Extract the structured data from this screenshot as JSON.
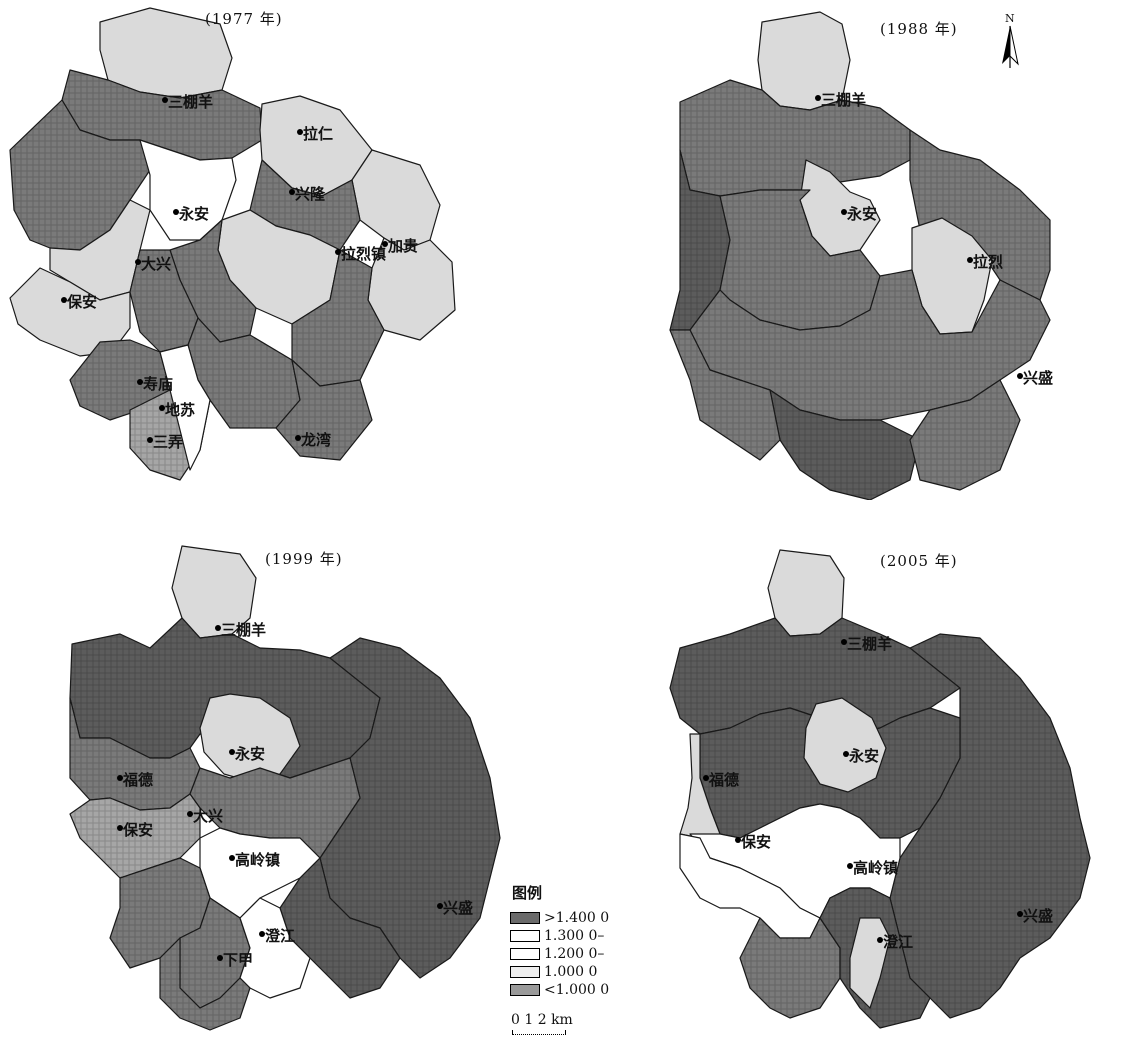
{
  "colors": {
    "very_dark": "#5c5c5c",
    "dark": "#7a7a7a",
    "mid": "#a6a6a6",
    "light": "#dadada",
    "white": "#ffffff",
    "border": "#1a1a1a"
  },
  "maps": [
    {
      "year_label": "(1977 年)",
      "places": [
        "三棚羊",
        "拉仁",
        "永安",
        "大兴",
        "拉烈镇",
        "加贵",
        "保安",
        "寿庙",
        "地苏",
        "三弄",
        "龙湾",
        "兴隆"
      ],
      "region_classes": [
        "light",
        "dark",
        "dark",
        "light",
        "white",
        "light",
        "dark",
        "light",
        "light",
        "dark",
        "light",
        "light",
        "dark",
        "dark",
        "dark",
        "dark",
        "mid",
        "white",
        "dark"
      ]
    },
    {
      "year_label": "(1988 年)",
      "places": [
        "三棚羊",
        "永安",
        "拉烈",
        "兴盛"
      ],
      "region_classes": [
        "light",
        "dark",
        "very_dark",
        "dark",
        "light",
        "dark",
        "light",
        "dark",
        "very_dark",
        "dark",
        "dark"
      ]
    },
    {
      "year_label": "(1999 年)",
      "places": [
        "三棚羊",
        "永安",
        "保安",
        "大兴",
        "高岭镇",
        "澄江",
        "兴盛",
        "福德",
        "下甲"
      ],
      "region_classes": [
        "light",
        "very_dark",
        "very_dark",
        "dark",
        "light",
        "dark",
        "mid",
        "white",
        "very_dark",
        "dark",
        "dark",
        "white",
        "dark"
      ]
    },
    {
      "year_label": "(2005 年)",
      "places": [
        "三棚羊",
        "永安",
        "保安",
        "高岭镇",
        "澄江",
        "兴盛",
        "福德"
      ],
      "region_classes": [
        "light",
        "very_dark",
        "very_dark",
        "very_dark",
        "light",
        "light",
        "white",
        "white",
        "dark",
        "very_dark",
        "light"
      ]
    }
  ],
  "north": {
    "letter": "N"
  },
  "legend": {
    "title": "图例",
    "items": [
      {
        "label": ">1.400 0",
        "color": "#6b6b6b"
      },
      {
        "label": "1.300 0–",
        "color": "#ffffff"
      },
      {
        "label": "1.200 0–",
        "color": "#ffffff"
      },
      {
        "label": "1.000 0",
        "color": "#eeeeee"
      },
      {
        "label": "<1.000 0",
        "color": "#9a9a9a"
      }
    ]
  },
  "scale": {
    "label": "0  1  2 km"
  }
}
